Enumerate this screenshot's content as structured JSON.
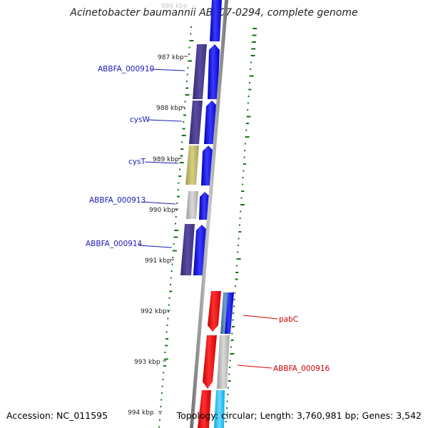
{
  "title": "Acinetobacter baumannii AB307-0294, complete genome",
  "accession": "Accession: NC_011595",
  "topology": "Topology: circular; Length: 3,760,981 bp; Genes: 3,542",
  "colors": {
    "backbone": "#8c8c8c",
    "forward_arrow": "#0000ff",
    "reverse_arrow": "#ff0000",
    "gc_tick": "#157015",
    "label_blue": "#1a1ab4",
    "label_red": "#cc0000",
    "cog_purple": "#483d8b",
    "cog_khaki": "#bdb76b",
    "cog_grey": "#bbbbbb",
    "cog_steel": "#4682b4",
    "cog_cyan": "#00bfff"
  },
  "ticks": [
    {
      "label": "986 kbp",
      "faded": true
    },
    {
      "label": "987 kbp"
    },
    {
      "label": "988 kbp"
    },
    {
      "label": "989 kbp"
    },
    {
      "label": "990 kbp"
    },
    {
      "label": "991 kbp"
    },
    {
      "label": "992 kbp"
    },
    {
      "label": "993 kbp"
    },
    {
      "label": "994 kbp"
    }
  ],
  "genes_left": [
    {
      "name": "ABBFA_000910"
    },
    {
      "name": "cysW"
    },
    {
      "name": "cysT"
    },
    {
      "name": "ABBFA_000913"
    },
    {
      "name": "ABBFA_000914"
    }
  ],
  "genes_right": [
    {
      "name": "pabC"
    },
    {
      "name": "ABBFA_000916"
    }
  ]
}
